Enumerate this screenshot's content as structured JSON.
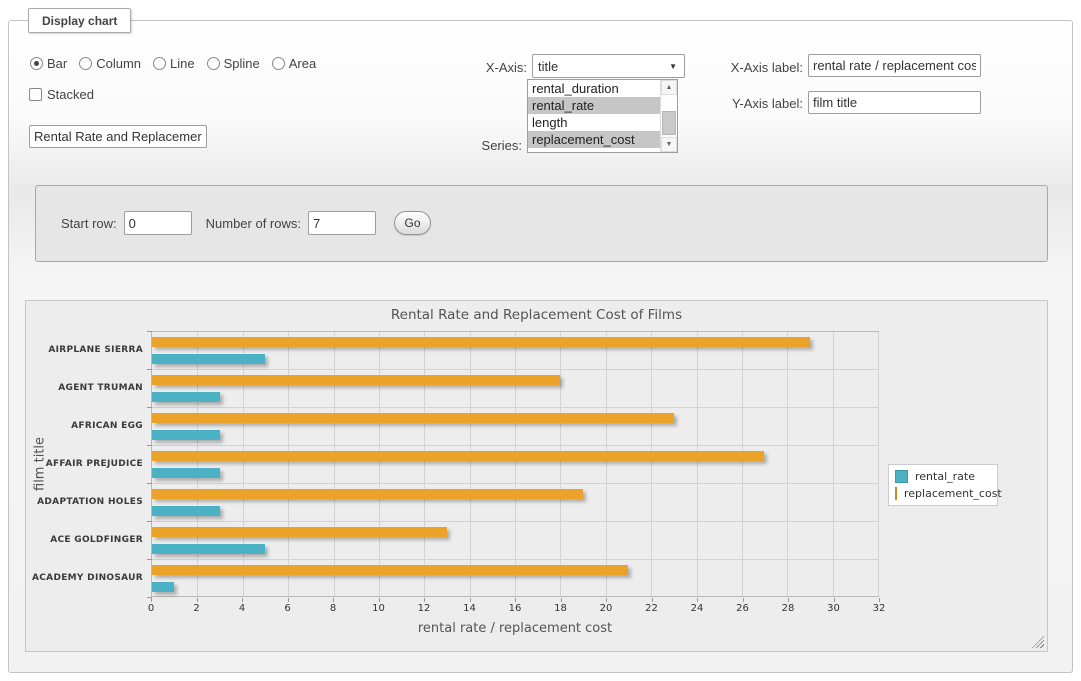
{
  "display_chart": {
    "legend": "Display chart"
  },
  "chart_types": {
    "options": [
      {
        "label": "Bar",
        "selected": true
      },
      {
        "label": "Column",
        "selected": false
      },
      {
        "label": "Line",
        "selected": false
      },
      {
        "label": "Spline",
        "selected": false
      },
      {
        "label": "Area",
        "selected": false
      }
    ]
  },
  "stacked": {
    "label": "Stacked",
    "checked": false
  },
  "title_input": {
    "value": "Rental Rate and Replacemer"
  },
  "x_axis_select": {
    "label": "X-Axis:",
    "value": "title"
  },
  "series_select": {
    "label": "Series:",
    "options": [
      {
        "label": "rental_duration",
        "selected": false
      },
      {
        "label": "rental_rate",
        "selected": true
      },
      {
        "label": "length",
        "selected": false
      },
      {
        "label": "replacement_cost",
        "selected": true
      }
    ]
  },
  "x_axis_label_field": {
    "label": "X-Axis label:",
    "value": "rental rate / replacement cost"
  },
  "y_axis_label_field": {
    "label": "Y-Axis label:",
    "value": "film title"
  },
  "rows_form": {
    "start_row_label": "Start row:",
    "start_row_value": "0",
    "num_rows_label": "Number of rows:",
    "num_rows_value": "7",
    "go_label": "Go"
  },
  "colors": {
    "rental_rate": "#4bb2c5",
    "replacement_cost": "#eaa228"
  },
  "chart_data": {
    "type": "bar",
    "orientation": "horizontal",
    "title": "Rental Rate and Replacement Cost of Films",
    "categories": [
      "AIRPLANE SIERRA",
      "AGENT TRUMAN",
      "AFRICAN EGG",
      "AFFAIR PREJUDICE",
      "ADAPTATION HOLES",
      "ACE GOLDFINGER",
      "ACADEMY DINOSAUR"
    ],
    "series": [
      {
        "name": "rental_rate",
        "color": "#4bb2c5",
        "values": [
          4.99,
          2.99,
          2.99,
          2.99,
          2.99,
          4.99,
          0.99
        ]
      },
      {
        "name": "replacement_cost",
        "color": "#eaa228",
        "values": [
          28.99,
          17.99,
          22.99,
          26.99,
          18.99,
          12.99,
          20.99
        ]
      }
    ],
    "xlabel": "rental rate / replacement cost",
    "ylabel": "film title",
    "xlim": [
      0,
      32
    ],
    "xticks": [
      0,
      2,
      4,
      6,
      8,
      10,
      12,
      14,
      16,
      18,
      20,
      22,
      24,
      26,
      28,
      30,
      32
    ],
    "grid": true,
    "legend_position": "right"
  }
}
